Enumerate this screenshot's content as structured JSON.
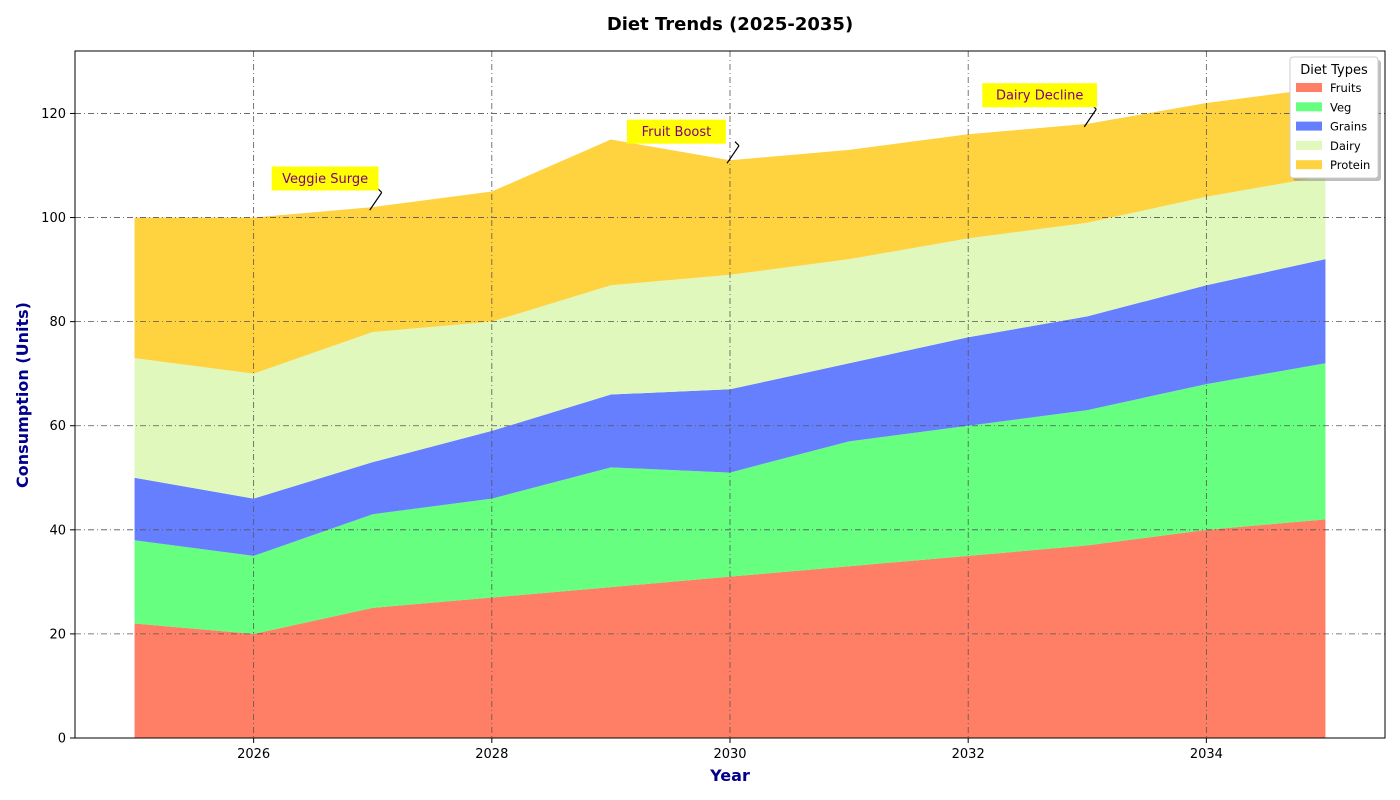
{
  "chart_data": {
    "type": "area",
    "stacked": true,
    "title": "Diet Trends (2025-2035)",
    "xlabel": "Year",
    "ylabel": "Consumption (Units)",
    "x": [
      2025,
      2026,
      2027,
      2028,
      2029,
      2030,
      2031,
      2032,
      2033,
      2034,
      2035
    ],
    "xlim": [
      2024.5,
      2035.5
    ],
    "ylim": [
      0,
      132
    ],
    "x_ticks": [
      2026,
      2028,
      2030,
      2032,
      2034
    ],
    "x_tick_labels": [
      "2026",
      "2028",
      "2030",
      "2032",
      "2034"
    ],
    "y_ticks": [
      0,
      20,
      40,
      60,
      80,
      100,
      120
    ],
    "y_tick_labels": [
      "0",
      "20",
      "40",
      "60",
      "80",
      "100",
      "120"
    ],
    "grid": true,
    "series": [
      {
        "name": "Fruits",
        "color": "#ff7f66",
        "values": [
          22,
          20,
          25,
          27,
          29,
          31,
          33,
          35,
          37,
          40,
          42
        ]
      },
      {
        "name": "Veg",
        "color": "#66ff7f",
        "values": [
          16,
          15,
          18,
          19,
          23,
          20,
          24,
          25,
          26,
          28,
          30
        ]
      },
      {
        "name": "Grains",
        "color": "#667fff",
        "values": [
          12,
          11,
          10,
          13,
          14,
          16,
          15,
          17,
          18,
          19,
          20
        ]
      },
      {
        "name": "Dairy",
        "color": "#e0f8bc",
        "values": [
          23,
          24,
          25,
          21,
          21,
          22,
          20,
          19,
          18,
          17,
          16
        ]
      },
      {
        "name": "Protein",
        "color": "#ffd23f",
        "values": [
          27,
          30,
          24,
          25,
          28,
          22,
          21,
          20,
          19,
          18,
          17
        ]
      }
    ],
    "legend": {
      "title": "Diet Types",
      "position": "top-right"
    },
    "annotations": [
      {
        "text": "Veggie Surge",
        "x": 2027,
        "y": 102,
        "text_x": 2026.6,
        "text_y": 107.5
      },
      {
        "text": "Fruit Boost",
        "x": 2030,
        "y": 111,
        "text_x": 2029.55,
        "text_y": 116.5
      },
      {
        "text": "Dairy Decline",
        "x": 2033,
        "y": 118,
        "text_x": 2032.6,
        "text_y": 123.5
      }
    ],
    "annotation_style": {
      "box_color": "#ffff00",
      "text_color": "#800080"
    }
  }
}
